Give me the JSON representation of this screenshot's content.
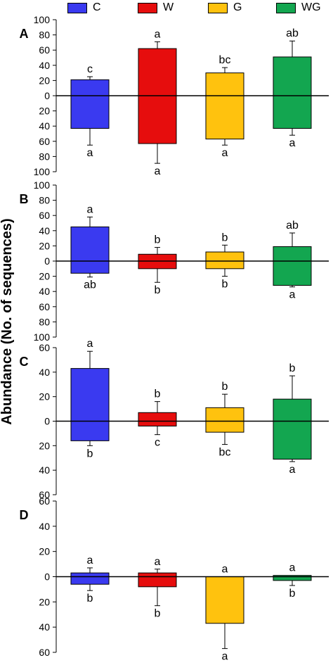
{
  "legend": [
    {
      "label": "C",
      "color": "#3a3af0"
    },
    {
      "label": "W",
      "color": "#e60d0d"
    },
    {
      "label": "G",
      "color": "#ffc20e"
    },
    {
      "label": "WG",
      "color": "#13a650"
    }
  ],
  "ylabel": "Abundance (No. of sequences)",
  "chart_data": [
    {
      "type": "bar",
      "panel": "A",
      "categories": [
        "C",
        "W",
        "G",
        "WG"
      ],
      "ylim": [
        -100,
        100
      ],
      "y_tick_labels": [
        "100",
        "80",
        "60",
        "40",
        "20",
        "0",
        "20",
        "40",
        "60",
        "80",
        "100"
      ],
      "series": [
        {
          "name": "C",
          "upper": 21,
          "upper_err": 25,
          "upper_letter": "c",
          "lower": -43,
          "lower_err": -65,
          "lower_letter": "a"
        },
        {
          "name": "W",
          "upper": 62,
          "upper_err": 71,
          "upper_letter": "a",
          "lower": -63,
          "lower_err": -89,
          "lower_letter": "a"
        },
        {
          "name": "G",
          "upper": 30,
          "upper_err": 37,
          "upper_letter": "bc",
          "lower": -57,
          "lower_err": -65,
          "lower_letter": "a"
        },
        {
          "name": "WG",
          "upper": 51,
          "upper_err": 72,
          "upper_letter": "ab",
          "lower": -43,
          "lower_err": -52,
          "lower_letter": "a"
        }
      ]
    },
    {
      "type": "bar",
      "panel": "B",
      "categories": [
        "C",
        "W",
        "G",
        "WG"
      ],
      "ylim": [
        -100,
        100
      ],
      "y_tick_labels": [
        "100",
        "80",
        "60",
        "40",
        "20",
        "0",
        "20",
        "40",
        "60",
        "80",
        "100"
      ],
      "series": [
        {
          "name": "C",
          "upper": 45,
          "upper_err": 58,
          "upper_letter": "a",
          "lower": -16,
          "lower_err": -21,
          "lower_letter": "ab"
        },
        {
          "name": "W",
          "upper": 9,
          "upper_err": 18,
          "upper_letter": "b",
          "lower": -10,
          "lower_err": -28,
          "lower_letter": "b"
        },
        {
          "name": "G",
          "upper": 12,
          "upper_err": 21,
          "upper_letter": "b",
          "lower": -10,
          "lower_err": -20,
          "lower_letter": "b"
        },
        {
          "name": "WG",
          "upper": 19,
          "upper_err": 37,
          "upper_letter": "ab",
          "lower": -32,
          "lower_err": -34,
          "lower_letter": "a"
        }
      ]
    },
    {
      "type": "bar",
      "panel": "C",
      "categories": [
        "C",
        "W",
        "G",
        "WG"
      ],
      "ylim": [
        -60,
        60
      ],
      "y_tick_labels": [
        "60",
        "40",
        "20",
        "0",
        "20",
        "40",
        "60"
      ],
      "series": [
        {
          "name": "C",
          "upper": 43,
          "upper_err": 57,
          "upper_letter": "a",
          "lower": -16,
          "lower_err": -20,
          "lower_letter": "b"
        },
        {
          "name": "W",
          "upper": 7,
          "upper_err": 16,
          "upper_letter": "b",
          "lower": -4,
          "lower_err": -11,
          "lower_letter": "c"
        },
        {
          "name": "G",
          "upper": 11,
          "upper_err": 22,
          "upper_letter": "b",
          "lower": -9,
          "lower_err": -19,
          "lower_letter": "bc"
        },
        {
          "name": "WG",
          "upper": 18,
          "upper_err": 37,
          "upper_letter": "b",
          "lower": -31,
          "lower_err": -33,
          "lower_letter": "a"
        }
      ]
    },
    {
      "type": "bar",
      "panel": "D",
      "categories": [
        "C",
        "W",
        "G",
        "WG"
      ],
      "ylim": [
        -60,
        60
      ],
      "y_tick_labels": [
        "60",
        "40",
        "20",
        "0",
        "20",
        "40",
        "60"
      ],
      "series": [
        {
          "name": "C",
          "upper": 3,
          "upper_err": 7,
          "upper_letter": "a",
          "lower": -6,
          "lower_err": -11,
          "lower_letter": "b"
        },
        {
          "name": "W",
          "upper": 3,
          "upper_err": 6,
          "upper_letter": "a",
          "lower": -8,
          "lower_err": -23,
          "lower_letter": "b"
        },
        {
          "name": "G",
          "upper": 0,
          "upper_err": 0,
          "upper_letter": "a",
          "lower": -37,
          "lower_err": -57,
          "lower_letter": "a"
        },
        {
          "name": "WG",
          "upper": 1,
          "upper_err": 1,
          "upper_letter": "a",
          "lower": -3,
          "lower_err": -7,
          "lower_letter": "b"
        }
      ]
    }
  ]
}
